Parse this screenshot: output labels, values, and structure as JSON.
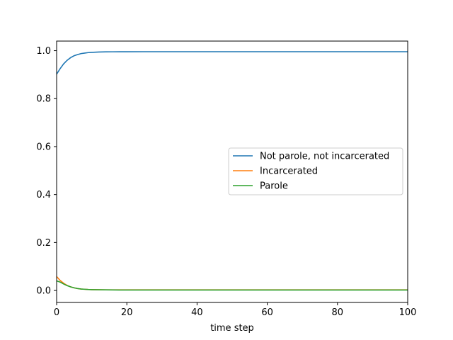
{
  "chart_data": {
    "type": "line",
    "title": "",
    "xlabel": "time step",
    "ylabel": "",
    "xlim": [
      0,
      100
    ],
    "ylim": [
      -0.05,
      1.04
    ],
    "xticks": [
      0,
      20,
      40,
      60,
      80,
      100
    ],
    "yticks": [
      0.0,
      0.2,
      0.4,
      0.6,
      0.8,
      1.0
    ],
    "xtick_labels": [
      "0",
      "20",
      "40",
      "60",
      "80",
      "100"
    ],
    "ytick_labels": [
      "0.0",
      "0.2",
      "0.4",
      "0.6",
      "0.8",
      "1.0"
    ],
    "grid": false,
    "legend_position": "center-right",
    "x": [
      0,
      1,
      2,
      3,
      4,
      5,
      6,
      7,
      8,
      9,
      10,
      12,
      14,
      16,
      18,
      20,
      25,
      30,
      40,
      50,
      60,
      70,
      80,
      90,
      100
    ],
    "series": [
      {
        "name": "Not parole, not incarcerated",
        "color": "#1f77b4",
        "values": [
          0.902,
          0.925,
          0.945,
          0.96,
          0.971,
          0.979,
          0.984,
          0.988,
          0.99,
          0.992,
          0.993,
          0.9945,
          0.995,
          0.9953,
          0.9955,
          0.9956,
          0.9957,
          0.9957,
          0.9957,
          0.9957,
          0.9957,
          0.9957,
          0.9957,
          0.9957,
          0.9957
        ]
      },
      {
        "name": "Incarcerated",
        "color": "#ff7f0e",
        "values": [
          0.058,
          0.042,
          0.03,
          0.021,
          0.015,
          0.011,
          0.008,
          0.006,
          0.005,
          0.004,
          0.0035,
          0.003,
          0.0028,
          0.0027,
          0.0026,
          0.0025,
          0.0025,
          0.0025,
          0.0025,
          0.0025,
          0.0025,
          0.0025,
          0.0025,
          0.0025,
          0.0025
        ]
      },
      {
        "name": "Parole",
        "color": "#2ca02c",
        "values": [
          0.04,
          0.035,
          0.027,
          0.02,
          0.015,
          0.011,
          0.008,
          0.006,
          0.005,
          0.004,
          0.0035,
          0.003,
          0.0025,
          0.0022,
          0.002,
          0.0019,
          0.0018,
          0.0018,
          0.0018,
          0.0018,
          0.0018,
          0.0018,
          0.0018,
          0.0018,
          0.0018
        ]
      }
    ]
  }
}
